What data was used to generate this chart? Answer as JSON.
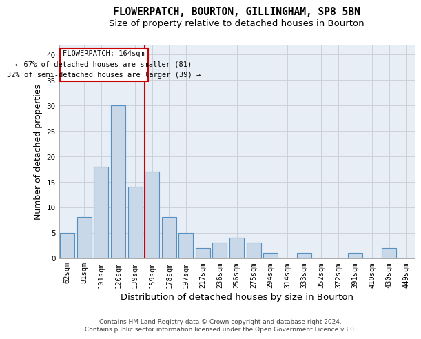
{
  "title": "FLOWERPATCH, BOURTON, GILLINGHAM, SP8 5BN",
  "subtitle": "Size of property relative to detached houses in Bourton",
  "xlabel": "Distribution of detached houses by size in Bourton",
  "ylabel": "Number of detached properties",
  "categories": [
    "62sqm",
    "81sqm",
    "101sqm",
    "120sqm",
    "139sqm",
    "159sqm",
    "178sqm",
    "197sqm",
    "217sqm",
    "236sqm",
    "256sqm",
    "275sqm",
    "294sqm",
    "314sqm",
    "333sqm",
    "352sqm",
    "372sqm",
    "391sqm",
    "410sqm",
    "430sqm",
    "449sqm"
  ],
  "values": [
    5,
    8,
    18,
    30,
    14,
    17,
    8,
    5,
    2,
    3,
    4,
    3,
    1,
    0,
    1,
    0,
    0,
    1,
    0,
    2,
    0
  ],
  "bar_color": "#c8d8e8",
  "bar_edge_color": "#5590c0",
  "ylim": [
    0,
    42
  ],
  "yticks": [
    0,
    5,
    10,
    15,
    20,
    25,
    30,
    35,
    40
  ],
  "grid_color": "#c8ccd4",
  "bg_color": "#e8eef5",
  "property_bin_index": 5,
  "annotation_title": "FLOWERPATCH: 164sqm",
  "annotation_line1": "← 67% of detached houses are smaller (81)",
  "annotation_line2": "32% of semi-detached houses are larger (39) →",
  "vline_color": "#cc0000",
  "annotation_box_color": "#ffffff",
  "annotation_box_edge": "#cc0000",
  "footer_line1": "Contains HM Land Registry data © Crown copyright and database right 2024.",
  "footer_line2": "Contains public sector information licensed under the Open Government Licence v3.0.",
  "title_fontsize": 10.5,
  "subtitle_fontsize": 9.5,
  "axis_label_fontsize": 9,
  "tick_fontsize": 7.5,
  "annotation_fontsize": 7.5,
  "footer_fontsize": 6.5
}
